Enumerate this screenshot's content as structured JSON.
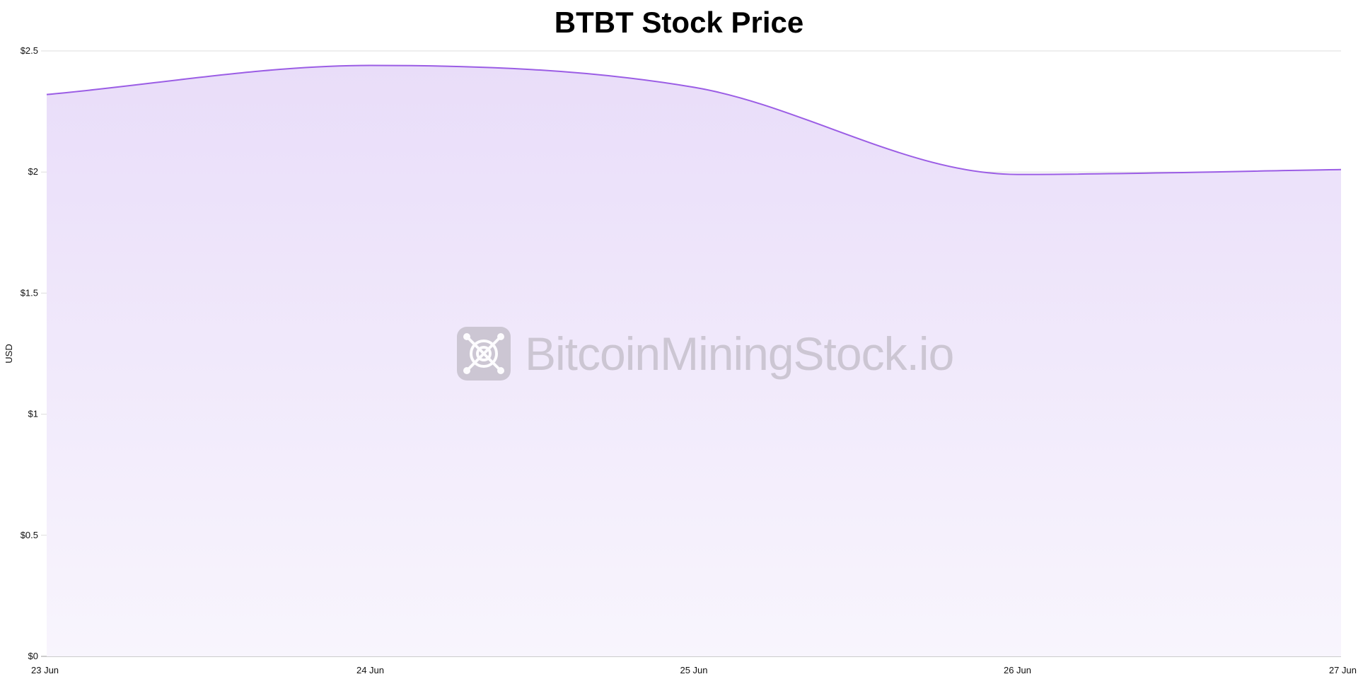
{
  "chart_data": {
    "type": "area",
    "title": "BTBT Stock Price",
    "xlabel": "",
    "ylabel": "USD",
    "categories": [
      "23 Jun",
      "24 Jun",
      "25 Jun",
      "26 Jun",
      "27 Jun"
    ],
    "values": [
      2.32,
      2.44,
      2.35,
      1.99,
      2.01
    ],
    "ylim": [
      0,
      2.5
    ],
    "yticks": [
      0,
      0.5,
      1,
      1.5,
      2,
      2.5
    ],
    "ytick_labels": [
      "$0",
      "$0.5",
      "$1",
      "$1.5",
      "$2",
      "$2.5"
    ],
    "grid": true,
    "line_color": "#9b5de5",
    "fill_top_color": "#e9ddf9",
    "fill_bottom_color": "#f8f5fd"
  },
  "watermark": "BitcoinMiningStock.io"
}
